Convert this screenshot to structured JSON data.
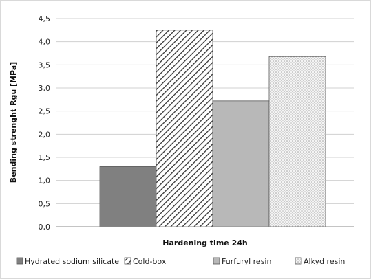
{
  "chart_data": {
    "type": "bar",
    "xlabel": "Hardening time 24h",
    "ylabel": "Bending strenght Rgu [MPa]",
    "ylim": [
      0,
      4.5
    ],
    "yticks": [
      "0,0",
      "0,5",
      "1,0",
      "1,5",
      "2,0",
      "2,5",
      "3,0",
      "3,5",
      "4,0",
      "4,5"
    ],
    "grid": true,
    "legend_position": "bottom",
    "categories": [
      "Hardening time 24h"
    ],
    "series": [
      {
        "name": "Hydrated sodium silicate",
        "values": [
          1.3
        ],
        "fill": "solid",
        "color": "#808080"
      },
      {
        "name": "Cold-box",
        "values": [
          4.25
        ],
        "fill": "diagonal-hatch",
        "color": "#333333"
      },
      {
        "name": "Furfuryl resin",
        "values": [
          2.72
        ],
        "fill": "solid",
        "color": "#b8b8b8"
      },
      {
        "name": "Alkyd resin",
        "values": [
          3.68
        ],
        "fill": "dotted",
        "color": "#c8c8c8"
      }
    ]
  }
}
